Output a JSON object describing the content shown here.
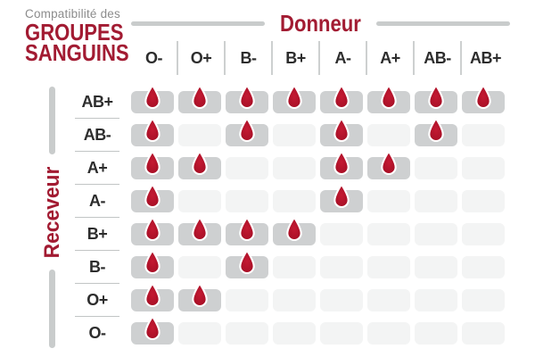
{
  "title": {
    "subtitle": "Compatibilité des",
    "line1": "GROUPES",
    "line2": "SANGUINS"
  },
  "axes": {
    "donor_label": "Donneur",
    "recipient_label": "Receveur"
  },
  "icons": {
    "cell_glyph": "blood-drop-icon"
  },
  "colors": {
    "heading_red": "#a21b32",
    "drop_red_center": "#c41a33",
    "drop_red_edge": "#9a0e22",
    "drop_outline": "#ffffff",
    "cell_filled": "#ced0d1",
    "cell_empty": "#f3f4f4",
    "text_dark": "#2d2d2d",
    "text_gray": "#8c8c8c",
    "line_gray": "#c9cccc"
  },
  "chart_data": {
    "type": "heatmap",
    "title": "Compatibilité des GROUPES SANGUINS",
    "x_axis_label": "Donneur",
    "y_axis_label": "Receveur",
    "columns": [
      "O-",
      "O+",
      "B-",
      "B+",
      "A-",
      "A+",
      "AB-",
      "AB+"
    ],
    "rows": [
      "AB+",
      "AB-",
      "A+",
      "A-",
      "B+",
      "B-",
      "O+",
      "O-"
    ],
    "matrix": [
      [
        1,
        1,
        1,
        1,
        1,
        1,
        1,
        1
      ],
      [
        1,
        0,
        1,
        0,
        1,
        0,
        1,
        0
      ],
      [
        1,
        1,
        0,
        0,
        1,
        1,
        0,
        0
      ],
      [
        1,
        0,
        0,
        0,
        1,
        0,
        0,
        0
      ],
      [
        1,
        1,
        1,
        1,
        0,
        0,
        0,
        0
      ],
      [
        1,
        0,
        1,
        0,
        0,
        0,
        0,
        0
      ],
      [
        1,
        1,
        0,
        0,
        0,
        0,
        0,
        0
      ],
      [
        1,
        0,
        0,
        0,
        0,
        0,
        0,
        0
      ]
    ],
    "legend": "1 = compatible (blood drop shown), 0 = not compatible",
    "grid": "off"
  }
}
